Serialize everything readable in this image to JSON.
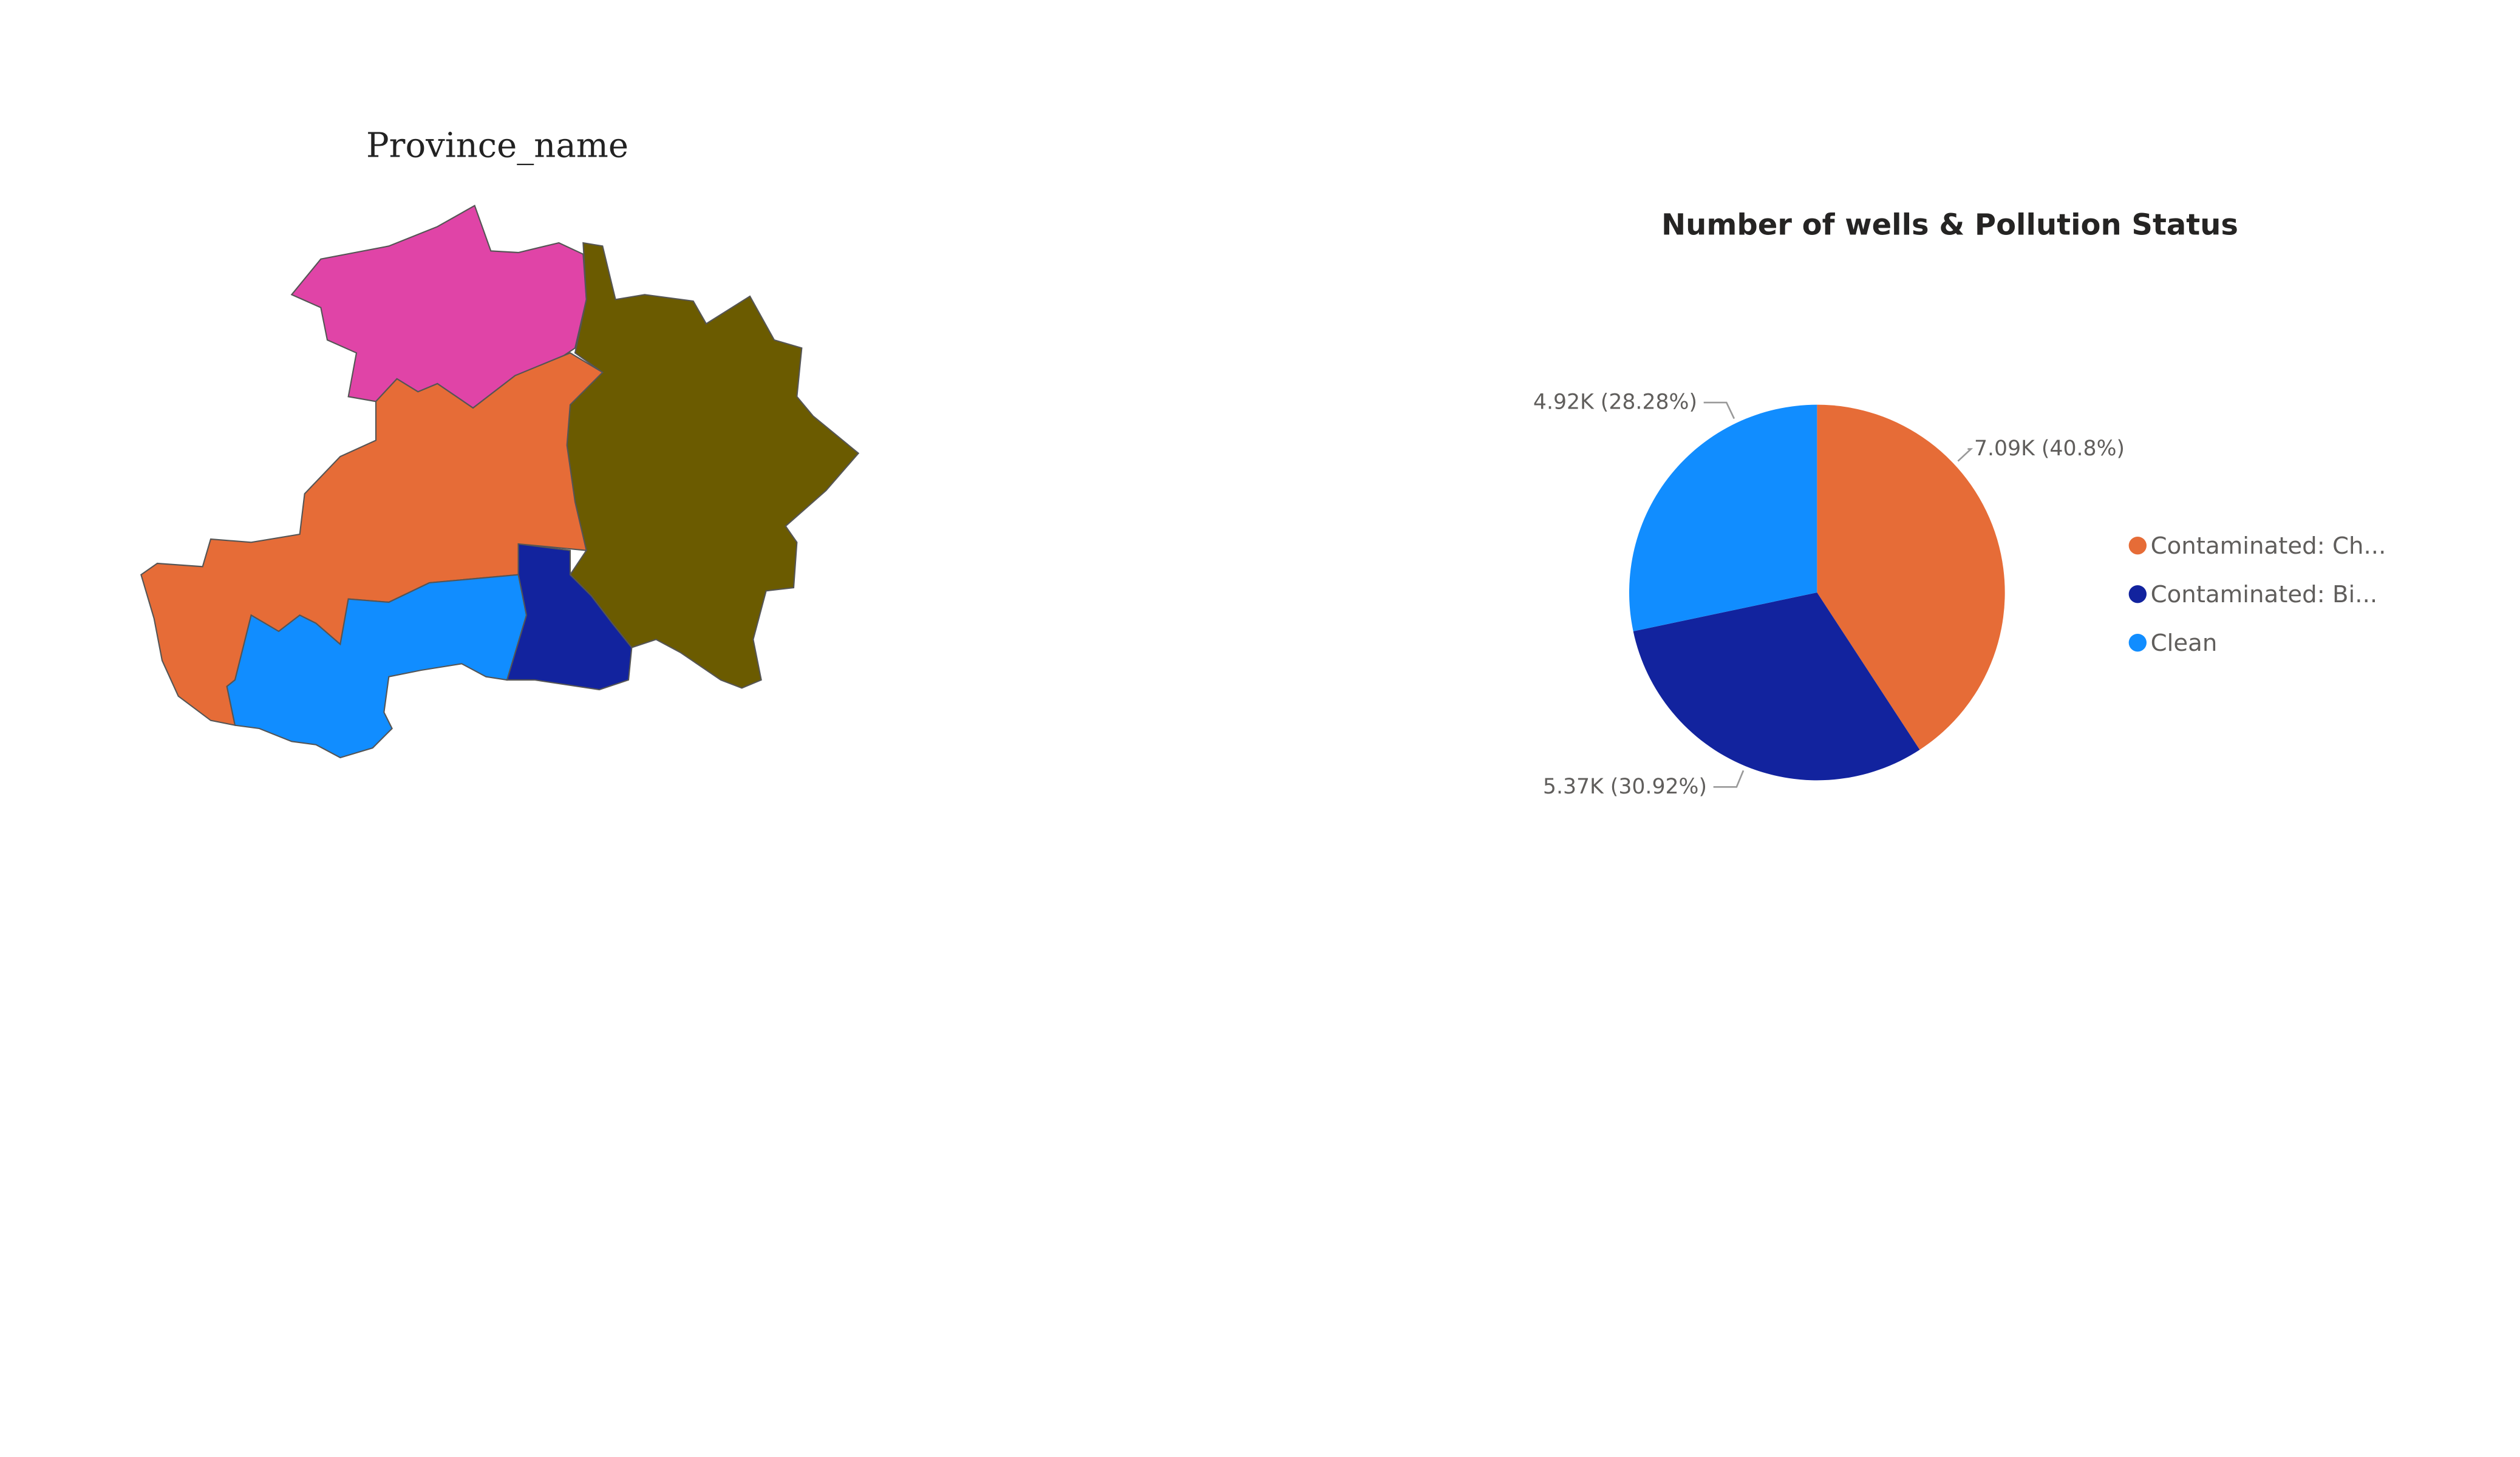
{
  "map": {
    "title": "Province_name"
  },
  "chart_data": {
    "type": "pie",
    "title": "Number of wells & Pollution Status",
    "categories": [
      "Contaminated: Ch...",
      "Contaminated: Bi...",
      "Clean"
    ],
    "values": [
      7090,
      5370,
      4920
    ],
    "value_labels": [
      "7.09K (40.8%)",
      "5.37K (30.92%)",
      "4.92K (28.28%)"
    ],
    "colors": [
      "#E66C37",
      "#12239E",
      "#118DFF"
    ],
    "legend": "right"
  }
}
